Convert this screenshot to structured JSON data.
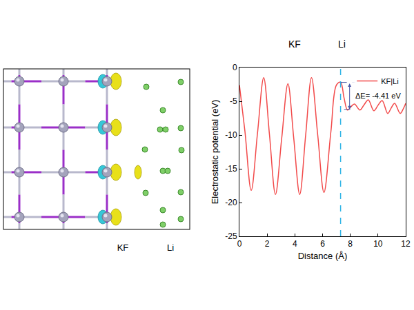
{
  "chart_data": {
    "type": "line",
    "x_label": "Distance (Å)",
    "y_label": "Electrostatic potential (eV)",
    "xlim": [
      0,
      12
    ],
    "ylim": [
      -25,
      0
    ],
    "xticks": [
      0,
      2,
      4,
      6,
      8,
      10,
      12
    ],
    "yticks": [
      -25,
      -20,
      -15,
      -10,
      -5,
      0
    ],
    "grid": false,
    "legend": "upper right",
    "series": [
      {
        "name": "KF|Li",
        "color": "#f24b4b",
        "line_style": "solid",
        "x": [
          0,
          0.4,
          0.85,
          1.3,
          1.75,
          2.17,
          2.6,
          3.05,
          3.5,
          3.92,
          4.35,
          4.78,
          5.2,
          5.65,
          6.1,
          6.6,
          7.0,
          7.3,
          7.55,
          7.8,
          8.05,
          8.3,
          8.7,
          9.0,
          9.3,
          9.7,
          10.0,
          10.3,
          10.7,
          10.95,
          11.2,
          11.6,
          11.85,
          12
        ],
        "values": [
          -2.6,
          -9.5,
          -18.2,
          -9.8,
          -1.5,
          -10.0,
          -18.8,
          -10.5,
          -2.4,
          -10.5,
          -18.8,
          -10.0,
          -1.5,
          -10.0,
          -18.5,
          -9.5,
          -2.6,
          -2.2,
          -4.5,
          -6.3,
          -5.8,
          -5.4,
          -6.3,
          -5.5,
          -4.8,
          -6.4,
          -5.6,
          -4.9,
          -6.8,
          -6.0,
          -5.3,
          -6.8,
          -6.0,
          -5.3
        ]
      }
    ],
    "region_labels": [
      {
        "x": 4.0,
        "text": "KF"
      },
      {
        "x": 7.4,
        "text": "Li"
      }
    ],
    "interface_x": 7.3,
    "delta_e": {
      "x": 7.95,
      "from": -2.2,
      "to": -6.2,
      "label": "ΔE= -4.41 eV"
    }
  },
  "structure": {
    "labels": [
      "KF",
      "Li"
    ]
  }
}
